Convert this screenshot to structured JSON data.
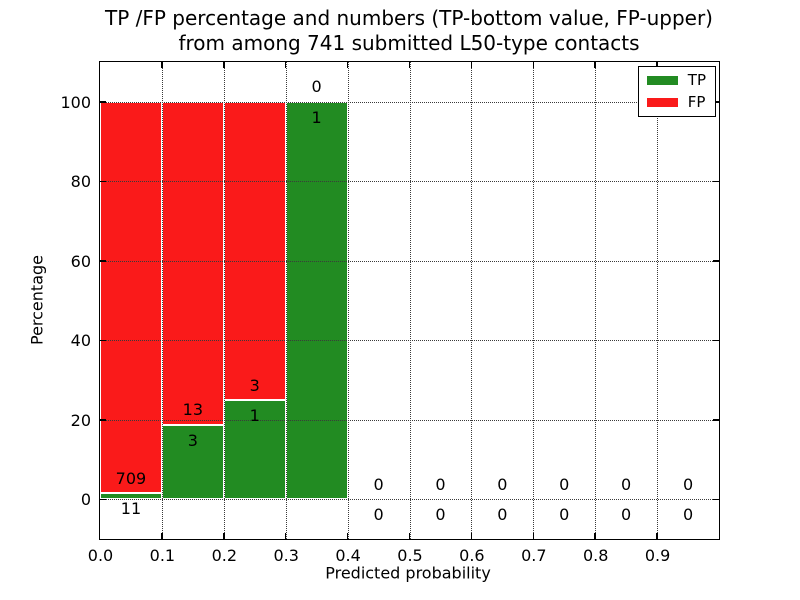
{
  "figure": {
    "title_line1": "TP /FP percentage and numbers (TP-bottom value, FP-upper)",
    "title_line2": "from among 741 submitted L50-type contacts"
  },
  "chart_data": {
    "type": "bar",
    "stacked": true,
    "title": "TP /FP percentage and numbers (TP-bottom value, FP-upper) from among 741 submitted L50-type contacts",
    "xlabel": "Predicted probability",
    "ylabel": "Percentage",
    "xlim": [
      0.0,
      1.0
    ],
    "ylim": [
      -10,
      110
    ],
    "grid": true,
    "grid_style": "dotted",
    "xticks": [
      0.0,
      0.1,
      0.2,
      0.3,
      0.4,
      0.5,
      0.6,
      0.7,
      0.8,
      0.9
    ],
    "xtick_labels": [
      "0.0",
      "0.1",
      "0.2",
      "0.3",
      "0.4",
      "0.5",
      "0.6",
      "0.7",
      "0.8",
      "0.9"
    ],
    "yticks": [
      0,
      20,
      40,
      60,
      80,
      100
    ],
    "ytick_labels": [
      "0",
      "20",
      "40",
      "60",
      "80",
      "100"
    ],
    "total_contacts": 741,
    "colors": {
      "tp": "#228b22",
      "fp": "#fa1a1a"
    },
    "legend": {
      "position": "upper right",
      "entries": [
        {
          "label": "TP",
          "color": "#228b22"
        },
        {
          "label": "FP",
          "color": "#fa1a1a"
        }
      ]
    },
    "bins": [
      {
        "range": [
          0.0,
          0.1
        ],
        "tp": 11,
        "fp": 709,
        "tp_pct": 1.53,
        "fp_pct": 98.47
      },
      {
        "range": [
          0.1,
          0.2
        ],
        "tp": 3,
        "fp": 13,
        "tp_pct": 18.75,
        "fp_pct": 81.25
      },
      {
        "range": [
          0.2,
          0.3
        ],
        "tp": 1,
        "fp": 3,
        "tp_pct": 25.0,
        "fp_pct": 75.0
      },
      {
        "range": [
          0.3,
          0.4
        ],
        "tp": 1,
        "fp": 0,
        "tp_pct": 100.0,
        "fp_pct": 0.0
      },
      {
        "range": [
          0.4,
          0.5
        ],
        "tp": 0,
        "fp": 0,
        "tp_pct": 0.0,
        "fp_pct": 0.0
      },
      {
        "range": [
          0.5,
          0.6
        ],
        "tp": 0,
        "fp": 0,
        "tp_pct": 0.0,
        "fp_pct": 0.0
      },
      {
        "range": [
          0.6,
          0.7
        ],
        "tp": 0,
        "fp": 0,
        "tp_pct": 0.0,
        "fp_pct": 0.0
      },
      {
        "range": [
          0.7,
          0.8
        ],
        "tp": 0,
        "fp": 0,
        "tp_pct": 0.0,
        "fp_pct": 0.0
      },
      {
        "range": [
          0.8,
          0.9
        ],
        "tp": 0,
        "fp": 0,
        "tp_pct": 0.0,
        "fp_pct": 0.0
      },
      {
        "range": [
          0.9,
          1.0
        ],
        "tp": 0,
        "fp": 0,
        "tp_pct": 0.0,
        "fp_pct": 0.0
      }
    ]
  }
}
